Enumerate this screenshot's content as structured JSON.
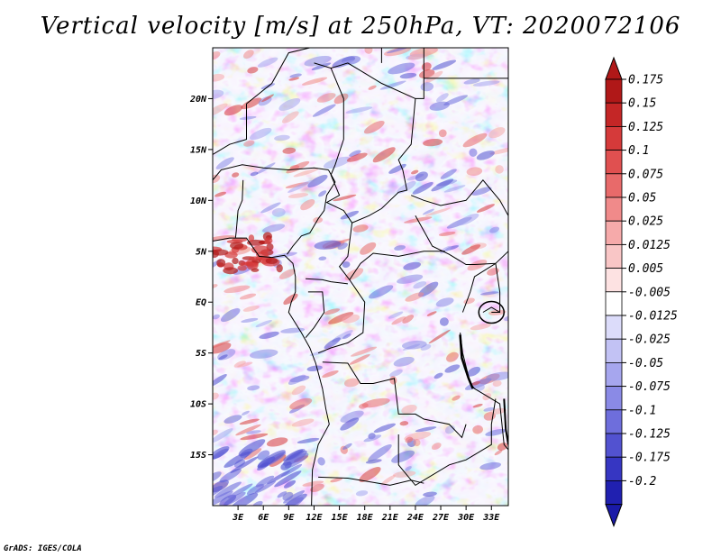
{
  "title": "Vertical velocity [m/s] at 250hPa, VT: 2020072106",
  "credit": "GrADS: IGES/COLA",
  "map": {
    "lon_range": [
      0,
      35
    ],
    "lat_range": [
      -20,
      25
    ],
    "lat_ticks": [
      {
        "lat": 20,
        "label": "20N"
      },
      {
        "lat": 15,
        "label": "15N"
      },
      {
        "lat": 10,
        "label": "10N"
      },
      {
        "lat": 5,
        "label": "5N"
      },
      {
        "lat": 0,
        "label": "EQ"
      },
      {
        "lat": -5,
        "label": "5S"
      },
      {
        "lat": -10,
        "label": "10S"
      },
      {
        "lat": -15,
        "label": "15S"
      }
    ],
    "lon_ticks": [
      {
        "lon": 3,
        "label": "3E"
      },
      {
        "lon": 6,
        "label": "6E"
      },
      {
        "lon": 9,
        "label": "9E"
      },
      {
        "lon": 12,
        "label": "12E"
      },
      {
        "lon": 15,
        "label": "15E"
      },
      {
        "lon": 18,
        "label": "18E"
      },
      {
        "lon": 21,
        "label": "21E"
      },
      {
        "lon": 24,
        "label": "24E"
      },
      {
        "lon": 27,
        "label": "27E"
      },
      {
        "lon": 30,
        "label": "30E"
      },
      {
        "lon": 33,
        "label": "33E"
      }
    ]
  },
  "colorbar": {
    "levels": [
      {
        "label": "0.175",
        "color": "#b01818"
      },
      {
        "label": "0.15",
        "color": "#c42626"
      },
      {
        "label": "0.125",
        "color": "#d53a3a"
      },
      {
        "label": "0.1",
        "color": "#e05050"
      },
      {
        "label": "0.075",
        "color": "#e86a6a"
      },
      {
        "label": "0.05",
        "color": "#f08a8a"
      },
      {
        "label": "0.025",
        "color": "#f6aaaa"
      },
      {
        "label": "0.0125",
        "color": "#f9c6c6"
      },
      {
        "label": "0.005",
        "color": "#fde2e2"
      },
      {
        "label": "-0.005",
        "color": "#ffffff"
      },
      {
        "label": "-0.0125",
        "color": "#dcdcfa"
      },
      {
        "label": "-0.025",
        "color": "#c2c2f4"
      },
      {
        "label": "-0.05",
        "color": "#a6a6ee"
      },
      {
        "label": "-0.075",
        "color": "#8a8ae6"
      },
      {
        "label": "-0.1",
        "color": "#6e6edc"
      },
      {
        "label": "-0.125",
        "color": "#5252d0"
      },
      {
        "label": "-0.175",
        "color": "#3636c2"
      },
      {
        "label": "-0.2",
        "color": "#2020b0"
      }
    ],
    "top_cap_color": "#b01818",
    "bottom_cap_color": "#1a1aa8"
  }
}
